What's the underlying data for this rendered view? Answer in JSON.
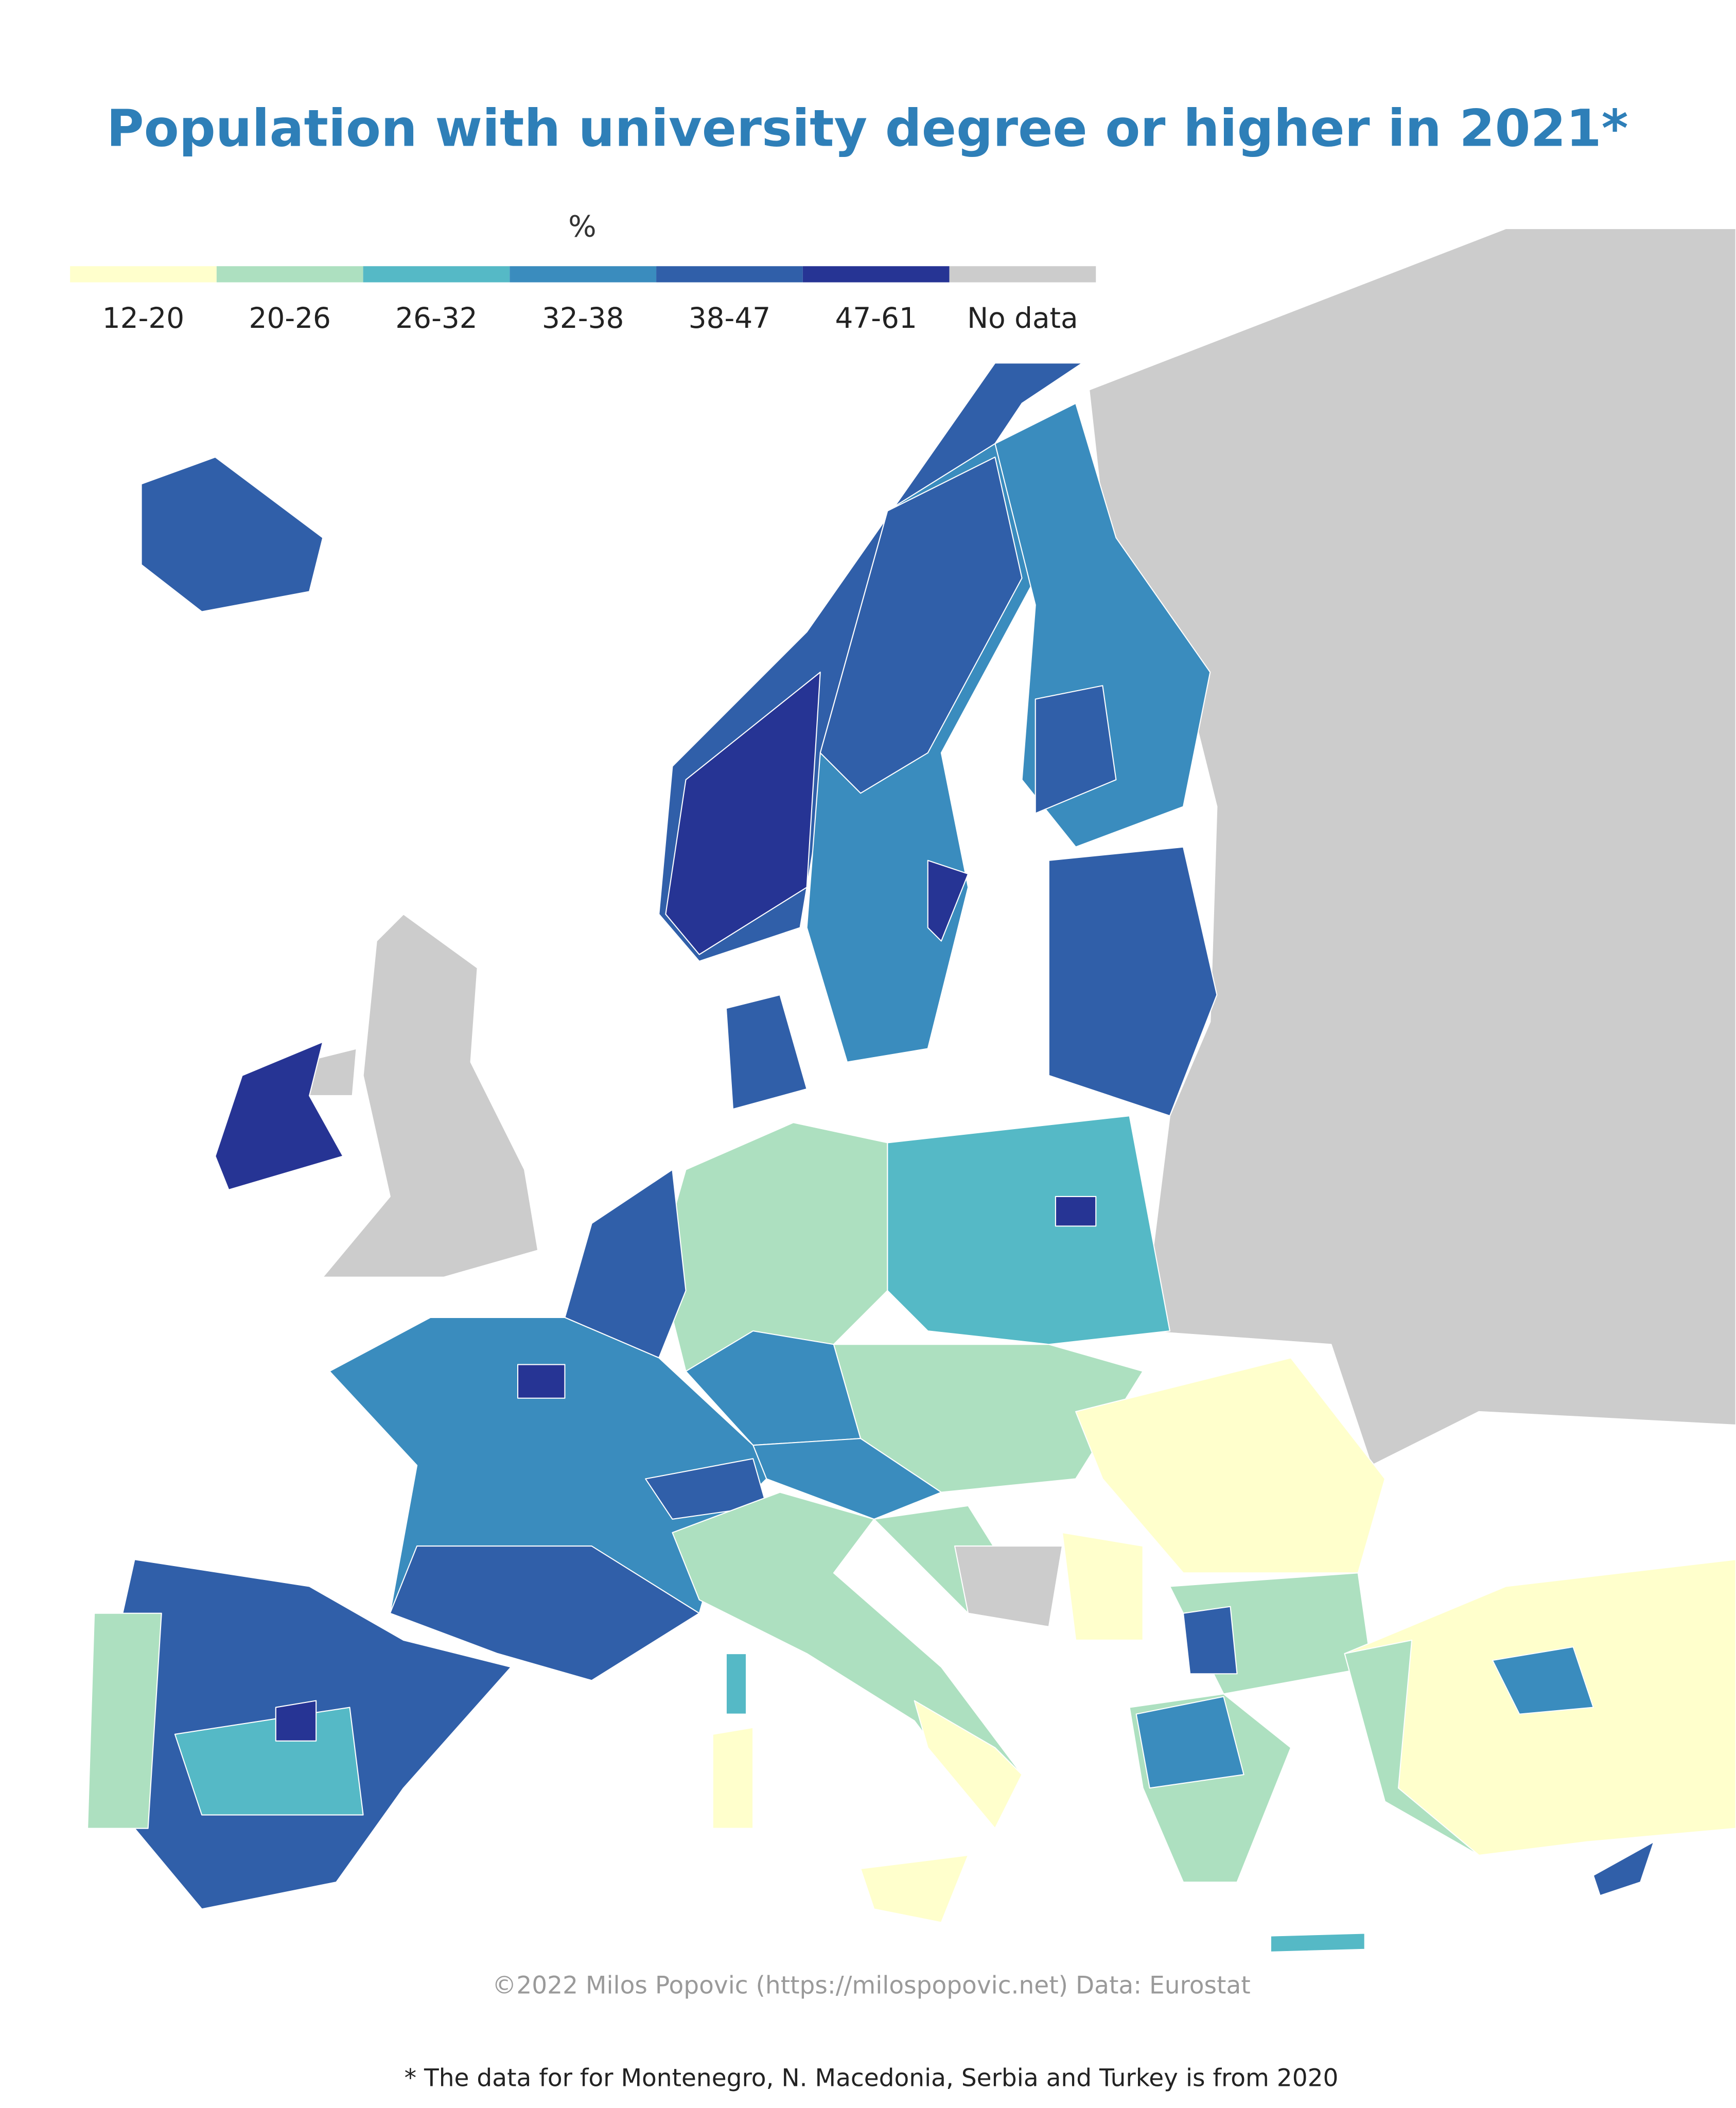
{
  "header": {
    "title": "Population with university degree or higher in 2021*"
  },
  "legend": {
    "title": "%",
    "items": [
      {
        "label": "12-20",
        "color": "#ffffcc"
      },
      {
        "label": "20-26",
        "color": "#ade0c0"
      },
      {
        "label": "26-32",
        "color": "#55b9c6"
      },
      {
        "label": "32-38",
        "color": "#3a8cbe"
      },
      {
        "label": "38-47",
        "color": "#305fa9"
      },
      {
        "label": "47-61",
        "color": "#263494"
      },
      {
        "label": "No data",
        "color": "#cccccc"
      }
    ]
  },
  "footer": {
    "credit": "©2022 Milos Popovic (https://milospopovic.net) Data: Eurostat",
    "note": "* The data for for Montenegro, N. Macedonia, Serbia and Turkey is from 2020"
  }
}
